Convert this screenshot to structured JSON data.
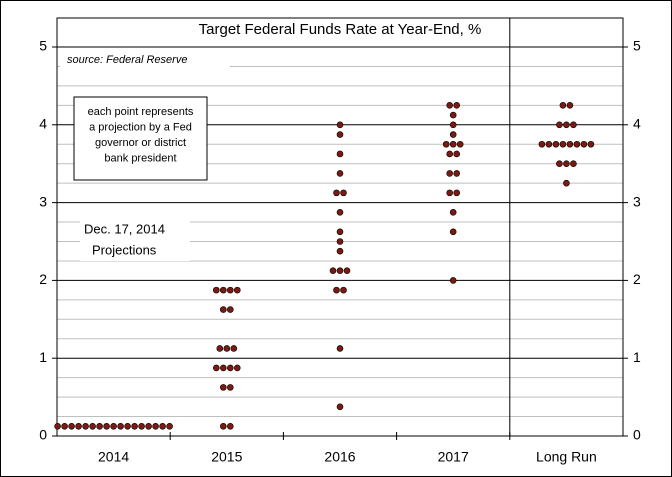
{
  "chart_data": {
    "type": "dot",
    "title": "Target Federal Funds Rate at Year-End, %",
    "source": "source: Federal Reserve",
    "note_lines": [
      "each point represents",
      "a projection by a Fed",
      "governor or district",
      "bank president"
    ],
    "date_label": "Dec. 17, 2014",
    "date_sublabel": "Projections",
    "categories": [
      "2014",
      "2015",
      "2016",
      "2017",
      "Long Run"
    ],
    "values": [
      [
        0.125,
        0.125,
        0.125,
        0.125,
        0.125,
        0.125,
        0.125,
        0.125,
        0.125,
        0.125,
        0.125,
        0.125,
        0.125,
        0.125,
        0.125,
        0.125,
        0.125
      ],
      [
        0.125,
        0.125,
        0.625,
        0.625,
        0.875,
        0.875,
        0.875,
        0.875,
        1.125,
        1.125,
        1.125,
        1.625,
        1.625,
        1.875,
        1.875,
        1.875,
        1.875
      ],
      [
        0.375,
        1.125,
        1.875,
        1.875,
        2.125,
        2.125,
        2.125,
        2.375,
        2.5,
        2.625,
        2.875,
        3.125,
        3.125,
        3.375,
        3.625,
        3.875,
        4.0
      ],
      [
        2.0,
        2.625,
        2.875,
        3.125,
        3.125,
        3.375,
        3.375,
        3.625,
        3.625,
        3.75,
        3.75,
        3.75,
        3.875,
        4.0,
        4.125,
        4.25,
        4.25
      ],
      [
        3.25,
        3.5,
        3.5,
        3.5,
        3.75,
        3.75,
        3.75,
        3.75,
        3.75,
        3.75,
        3.75,
        3.75,
        4.0,
        4.0,
        4.0,
        4.25,
        4.25
      ]
    ],
    "color": "#7b1a12",
    "ylim": [
      0,
      5
    ],
    "yticks": [
      0,
      1,
      2,
      3,
      4,
      5
    ],
    "minor_step": 0.25,
    "grid": true
  }
}
